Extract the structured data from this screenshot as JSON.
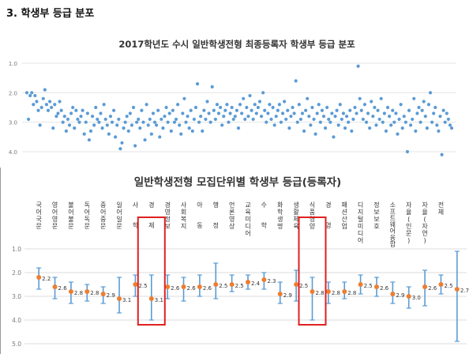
{
  "section": {
    "title": "3. 학생부 등급 분포"
  },
  "chart_data": [
    {
      "type": "scatter",
      "title": "2017학년도 수시 일반학생전형 최종등록자 학생부 등급 분포",
      "xlabel": "",
      "ylabel": "",
      "ylim": [
        1.0,
        4.0
      ],
      "y_inverted": true,
      "yticks": [
        "1.0",
        "2.0",
        "3.0",
        "4.0"
      ],
      "grid": true,
      "color": "#5B9BD5",
      "points": [
        [
          1,
          2.0
        ],
        [
          2,
          2.9
        ],
        [
          3,
          2.1
        ],
        [
          4,
          2.0
        ],
        [
          5,
          2.4
        ],
        [
          6,
          2.1
        ],
        [
          7,
          2.3
        ],
        [
          8,
          2.6
        ],
        [
          9,
          3.1
        ],
        [
          10,
          2.5
        ],
        [
          11,
          2.2
        ],
        [
          12,
          1.9
        ],
        [
          13,
          2.4
        ],
        [
          14,
          2.6
        ],
        [
          15,
          2.3
        ],
        [
          16,
          2.5
        ],
        [
          17,
          3.2
        ],
        [
          18,
          2.4
        ],
        [
          19,
          2.8
        ],
        [
          20,
          2.7
        ],
        [
          21,
          2.3
        ],
        [
          22,
          2.6
        ],
        [
          23,
          3.0
        ],
        [
          24,
          2.8
        ],
        [
          25,
          3.3
        ],
        [
          26,
          2.9
        ],
        [
          27,
          3.1
        ],
        [
          28,
          2.7
        ],
        [
          29,
          2.5
        ],
        [
          30,
          3.2
        ],
        [
          31,
          2.6
        ],
        [
          32,
          2.9
        ],
        [
          33,
          3.0
        ],
        [
          34,
          2.8
        ],
        [
          35,
          2.6
        ],
        [
          36,
          3.4
        ],
        [
          37,
          3.0
        ],
        [
          38,
          2.7
        ],
        [
          39,
          3.6
        ],
        [
          40,
          3.3
        ],
        [
          41,
          2.8
        ],
        [
          42,
          3.1
        ],
        [
          43,
          2.5
        ],
        [
          44,
          2.9
        ],
        [
          45,
          3.0
        ],
        [
          46,
          2.7
        ],
        [
          47,
          3.2
        ],
        [
          48,
          2.4
        ],
        [
          49,
          2.9
        ],
        [
          50,
          3.1
        ],
        [
          51,
          3.4
        ],
        [
          52,
          2.8
        ],
        [
          53,
          3.0
        ],
        [
          54,
          2.6
        ],
        [
          55,
          3.5
        ],
        [
          56,
          3.1
        ],
        [
          57,
          2.9
        ],
        [
          58,
          3.9
        ],
        [
          59,
          3.7
        ],
        [
          60,
          3.2
        ],
        [
          61,
          3.0
        ],
        [
          62,
          2.8
        ],
        [
          63,
          3.3
        ],
        [
          64,
          2.7
        ],
        [
          65,
          3.1
        ],
        [
          66,
          2.5
        ],
        [
          67,
          3.8
        ],
        [
          68,
          3.0
        ],
        [
          69,
          2.9
        ],
        [
          70,
          3.2
        ],
        [
          71,
          2.6
        ],
        [
          72,
          3.0
        ],
        [
          73,
          3.6
        ],
        [
          74,
          2.4
        ],
        [
          75,
          3.1
        ],
        [
          76,
          2.9
        ],
        [
          77,
          3.4
        ],
        [
          78,
          2.7
        ],
        [
          79,
          3.0
        ],
        [
          80,
          3.1
        ],
        [
          81,
          2.6
        ],
        [
          82,
          3.5
        ],
        [
          83,
          2.9
        ],
        [
          84,
          3.2
        ],
        [
          85,
          2.8
        ],
        [
          86,
          2.5
        ],
        [
          87,
          3.0
        ],
        [
          88,
          2.7
        ],
        [
          89,
          3.3
        ],
        [
          90,
          2.6
        ],
        [
          91,
          3.0
        ],
        [
          92,
          2.9
        ],
        [
          93,
          2.4
        ],
        [
          94,
          3.1
        ],
        [
          95,
          3.4
        ],
        [
          96,
          2.7
        ],
        [
          97,
          2.2
        ],
        [
          98,
          3.0
        ],
        [
          99,
          2.8
        ],
        [
          100,
          3.2
        ],
        [
          101,
          2.6
        ],
        [
          102,
          3.3
        ],
        [
          103,
          2.9
        ],
        [
          104,
          2.5
        ],
        [
          105,
          1.7
        ],
        [
          106,
          3.0
        ],
        [
          107,
          2.8
        ],
        [
          108,
          3.3
        ],
        [
          109,
          2.6
        ],
        [
          110,
          2.9
        ],
        [
          111,
          2.3
        ],
        [
          112,
          2.7
        ],
        [
          113,
          3.0
        ],
        [
          114,
          1.8
        ],
        [
          115,
          2.6
        ],
        [
          116,
          2.9
        ],
        [
          117,
          2.4
        ],
        [
          118,
          2.7
        ],
        [
          119,
          2.5
        ],
        [
          120,
          3.1
        ],
        [
          121,
          2.8
        ],
        [
          122,
          2.6
        ],
        [
          123,
          2.4
        ],
        [
          124,
          3.0
        ],
        [
          125,
          2.7
        ],
        [
          126,
          2.5
        ],
        [
          127,
          2.9
        ],
        [
          128,
          2.8
        ],
        [
          129,
          2.6
        ],
        [
          130,
          3.2
        ],
        [
          131,
          2.4
        ],
        [
          132,
          2.7
        ],
        [
          133,
          2.2
        ],
        [
          134,
          2.9
        ],
        [
          135,
          2.5
        ],
        [
          136,
          2.8
        ],
        [
          137,
          2.1
        ],
        [
          138,
          2.6
        ],
        [
          139,
          2.9
        ],
        [
          140,
          2.4
        ],
        [
          141,
          2.7
        ],
        [
          142,
          2.5
        ],
        [
          143,
          2.3
        ],
        [
          144,
          2.8
        ],
        [
          145,
          2.0
        ],
        [
          146,
          2.6
        ],
        [
          147,
          3.0
        ],
        [
          148,
          2.7
        ],
        [
          149,
          2.4
        ],
        [
          150,
          2.9
        ],
        [
          151,
          2.5
        ],
        [
          152,
          3.1
        ],
        [
          153,
          2.8
        ],
        [
          154,
          2.6
        ],
        [
          155,
          2.4
        ],
        [
          156,
          3.0
        ],
        [
          157,
          2.7
        ],
        [
          158,
          2.3
        ],
        [
          159,
          2.9
        ],
        [
          160,
          2.6
        ],
        [
          161,
          3.2
        ],
        [
          162,
          2.8
        ],
        [
          163,
          2.5
        ],
        [
          164,
          2.7
        ],
        [
          165,
          1.6
        ],
        [
          166,
          3.0
        ],
        [
          167,
          2.4
        ],
        [
          168,
          2.9
        ],
        [
          169,
          2.7
        ],
        [
          170,
          3.3
        ],
        [
          171,
          2.6
        ],
        [
          172,
          2.2
        ],
        [
          173,
          2.8
        ],
        [
          174,
          3.1
        ],
        [
          175,
          2.5
        ],
        [
          176,
          2.9
        ],
        [
          177,
          3.4
        ],
        [
          178,
          2.7
        ],
        [
          179,
          2.4
        ],
        [
          180,
          3.0
        ],
        [
          181,
          2.6
        ],
        [
          182,
          2.8
        ],
        [
          183,
          3.2
        ],
        [
          184,
          2.5
        ],
        [
          185,
          2.9
        ],
        [
          186,
          3.0
        ],
        [
          187,
          2.7
        ],
        [
          188,
          3.5
        ],
        [
          189,
          2.8
        ],
        [
          190,
          2.6
        ],
        [
          191,
          3.1
        ],
        [
          192,
          2.4
        ],
        [
          193,
          2.9
        ],
        [
          194,
          2.7
        ],
        [
          195,
          3.2
        ],
        [
          196,
          2.8
        ],
        [
          197,
          3.0
        ],
        [
          198,
          2.6
        ],
        [
          199,
          3.3
        ],
        [
          200,
          2.9
        ],
        [
          201,
          2.5
        ],
        [
          202,
          2.7
        ],
        [
          203,
          1.1
        ],
        [
          204,
          2.2
        ],
        [
          205,
          2.6
        ],
        [
          206,
          2.9
        ],
        [
          207,
          2.4
        ],
        [
          208,
          3.0
        ],
        [
          209,
          2.7
        ],
        [
          210,
          3.2
        ],
        [
          211,
          2.3
        ],
        [
          212,
          2.8
        ],
        [
          213,
          2.5
        ],
        [
          214,
          3.1
        ],
        [
          215,
          2.6
        ],
        [
          216,
          2.9
        ],
        [
          217,
          2.2
        ],
        [
          218,
          3.0
        ],
        [
          219,
          2.7
        ],
        [
          220,
          3.3
        ],
        [
          221,
          2.5
        ],
        [
          222,
          2.8
        ],
        [
          223,
          3.1
        ],
        [
          224,
          2.6
        ],
        [
          225,
          3.0
        ],
        [
          226,
          2.7
        ],
        [
          227,
          3.4
        ],
        [
          228,
          2.9
        ],
        [
          229,
          2.4
        ],
        [
          230,
          3.2
        ],
        [
          231,
          2.8
        ],
        [
          232,
          3.0
        ],
        [
          233,
          4.0
        ],
        [
          234,
          2.6
        ],
        [
          235,
          3.1
        ],
        [
          236,
          2.9
        ],
        [
          237,
          2.2
        ],
        [
          238,
          3.3
        ],
        [
          239,
          2.7
        ],
        [
          240,
          2.5
        ],
        [
          241,
          3.0
        ],
        [
          242,
          2.6
        ],
        [
          243,
          2.3
        ],
        [
          244,
          2.8
        ],
        [
          245,
          3.2
        ],
        [
          246,
          2.4
        ],
        [
          247,
          2.0
        ],
        [
          248,
          3.0
        ],
        [
          249,
          2.7
        ],
        [
          250,
          2.5
        ],
        [
          251,
          3.1
        ],
        [
          252,
          3.3
        ],
        [
          253,
          2.8
        ],
        [
          254,
          4.1
        ],
        [
          255,
          2.6
        ],
        [
          256,
          3.0
        ],
        [
          257,
          2.7
        ],
        [
          258,
          2.9
        ],
        [
          259,
          3.1
        ],
        [
          260,
          3.2
        ]
      ]
    },
    {
      "type": "errorbar",
      "title": "일반학생전형 모집단위별 학생부 등급(등록자)",
      "xlabel": "",
      "ylabel": "",
      "ylim": [
        1.0,
        5.0
      ],
      "y_inverted": true,
      "yticks": [
        "1.0",
        "2.0",
        "3.0",
        "4.0",
        "5.0"
      ],
      "color_point": "#ED7D31",
      "color_bar": "#5B9BD5",
      "highlight_color": "#E02020",
      "categories": [
        {
          "name": "국어국문",
          "mean": 2.2,
          "min": 1.8,
          "max": 2.7,
          "label": "2.2"
        },
        {
          "name": "영어영문",
          "mean": 2.6,
          "min": 2.2,
          "max": 3.1,
          "label": "2.6"
        },
        {
          "name": "불어불문",
          "mean": 2.8,
          "min": 2.4,
          "max": 3.3,
          "label": "2.8"
        },
        {
          "name": "독어독문",
          "mean": 2.8,
          "min": 2.5,
          "max": 3.2,
          "label": "2.8"
        },
        {
          "name": "중어중문",
          "mean": 2.9,
          "min": 2.6,
          "max": 3.3,
          "label": "2.9"
        },
        {
          "name": "일어일문",
          "mean": 3.1,
          "min": 2.2,
          "max": 3.7,
          "label": "3.1"
        },
        {
          "name": "사 학",
          "mean": 2.5,
          "min": 2.1,
          "max": 3.0,
          "label": "2.5"
        },
        {
          "name": "경 제",
          "mean": 3.1,
          "min": 2.1,
          "max": 4.0,
          "label": "3.1",
          "highlight": true
        },
        {
          "name": "경영정보",
          "mean": 2.6,
          "min": 2.1,
          "max": 3.1,
          "label": "2.6"
        },
        {
          "name": "사회복지",
          "mean": 2.6,
          "min": 2.2,
          "max": 3.2,
          "label": "2.6"
        },
        {
          "name": "아 동",
          "mean": 2.6,
          "min": 2.1,
          "max": 3.0,
          "label": "2.6"
        },
        {
          "name": "행 정",
          "mean": 2.5,
          "min": 1.6,
          "max": 3.1,
          "label": "2.5"
        },
        {
          "name": "언론영상",
          "mean": 2.5,
          "min": 2.1,
          "max": 2.8,
          "label": "2.5"
        },
        {
          "name": "교육미디어",
          "mean": 2.4,
          "min": 2.1,
          "max": 2.7,
          "label": "2.4"
        },
        {
          "name": "수 학",
          "mean": 2.3,
          "min": 2.0,
          "max": 2.7,
          "label": "2.3"
        },
        {
          "name": "화학생명",
          "mean": 2.9,
          "min": 2.4,
          "max": 3.3,
          "label": "2.9"
        },
        {
          "name": "생활체육",
          "mean": 2.5,
          "min": 1.9,
          "max": 3.2,
          "label": "2.5"
        },
        {
          "name": "식품영양",
          "mean": 2.8,
          "min": 2.2,
          "max": 4.0,
          "label": "2.8",
          "highlight": true
        },
        {
          "name": "경 영",
          "mean": 2.8,
          "min": 2.4,
          "max": 3.3,
          "label": "2.8"
        },
        {
          "name": "패션산업",
          "mean": 2.8,
          "min": 2.4,
          "max": 3.1,
          "label": "2.8"
        },
        {
          "name": "디지털미디어",
          "mean": 2.5,
          "min": 2.1,
          "max": 2.9,
          "label": "2.5"
        },
        {
          "name": "정보보호",
          "mean": 2.6,
          "min": 2.2,
          "max": 3.0,
          "label": "2.6"
        },
        {
          "name": "소프트웨어융합",
          "mean": 2.9,
          "min": 2.4,
          "max": 3.3,
          "label": "2.9"
        },
        {
          "name": "자율(인문)",
          "mean": 3.0,
          "min": 2.6,
          "max": 3.5,
          "label": "3.0"
        },
        {
          "name": "자율(자연)",
          "mean": 2.6,
          "min": 1.9,
          "max": 3.4,
          "label": "2.6"
        },
        {
          "name": "전체",
          "mean": 2.5,
          "min": 2.1,
          "max": 2.9,
          "label": "2.5"
        },
        {
          "name": "",
          "mean": 2.7,
          "min": 1.1,
          "max": 4.9,
          "label": "2.7"
        }
      ]
    }
  ]
}
